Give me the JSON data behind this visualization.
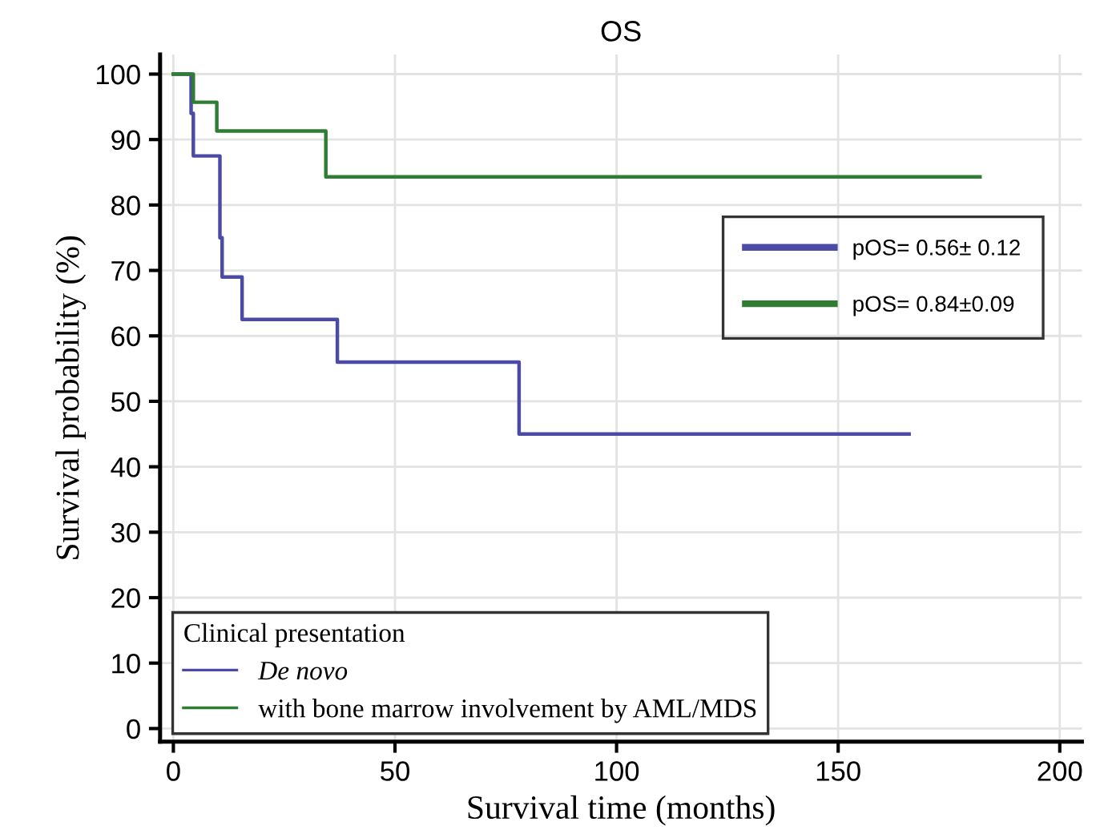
{
  "chart_data": {
    "type": "step",
    "title": "OS",
    "xlabel": "Survival time (months)",
    "ylabel": "Survival probability (%)",
    "legend_title": "Clinical presentation",
    "series": [
      {
        "name": "De novo",
        "color": "#4b4ba6",
        "x": [
          0,
          4,
          4.5,
          10.5,
          11,
          15.5,
          37,
          78,
          166
        ],
        "values": [
          100,
          94,
          87.5,
          75,
          69,
          62.5,
          56,
          45,
          45
        ]
      },
      {
        "name": "with bone marrow involvement by AML/MDS",
        "color": "#2e7d32",
        "x": [
          0,
          4.5,
          9.8,
          34.4,
          182
        ],
        "values": [
          100,
          95.7,
          91.3,
          84.3,
          84.3
        ]
      }
    ],
    "annotations": [
      "pOS= 0.56± 0.12",
      "pOS= 0.84±0.09"
    ],
    "xlim": [
      -3,
      205
    ],
    "ylim": [
      -2,
      103
    ],
    "xticks": [
      0,
      50,
      100,
      150,
      200
    ],
    "yticks": [
      0,
      10,
      20,
      30,
      40,
      50,
      60,
      70,
      80,
      90,
      100
    ],
    "grid": true,
    "legend": "bottom left",
    "line_style": "solid",
    "marker": "none"
  }
}
